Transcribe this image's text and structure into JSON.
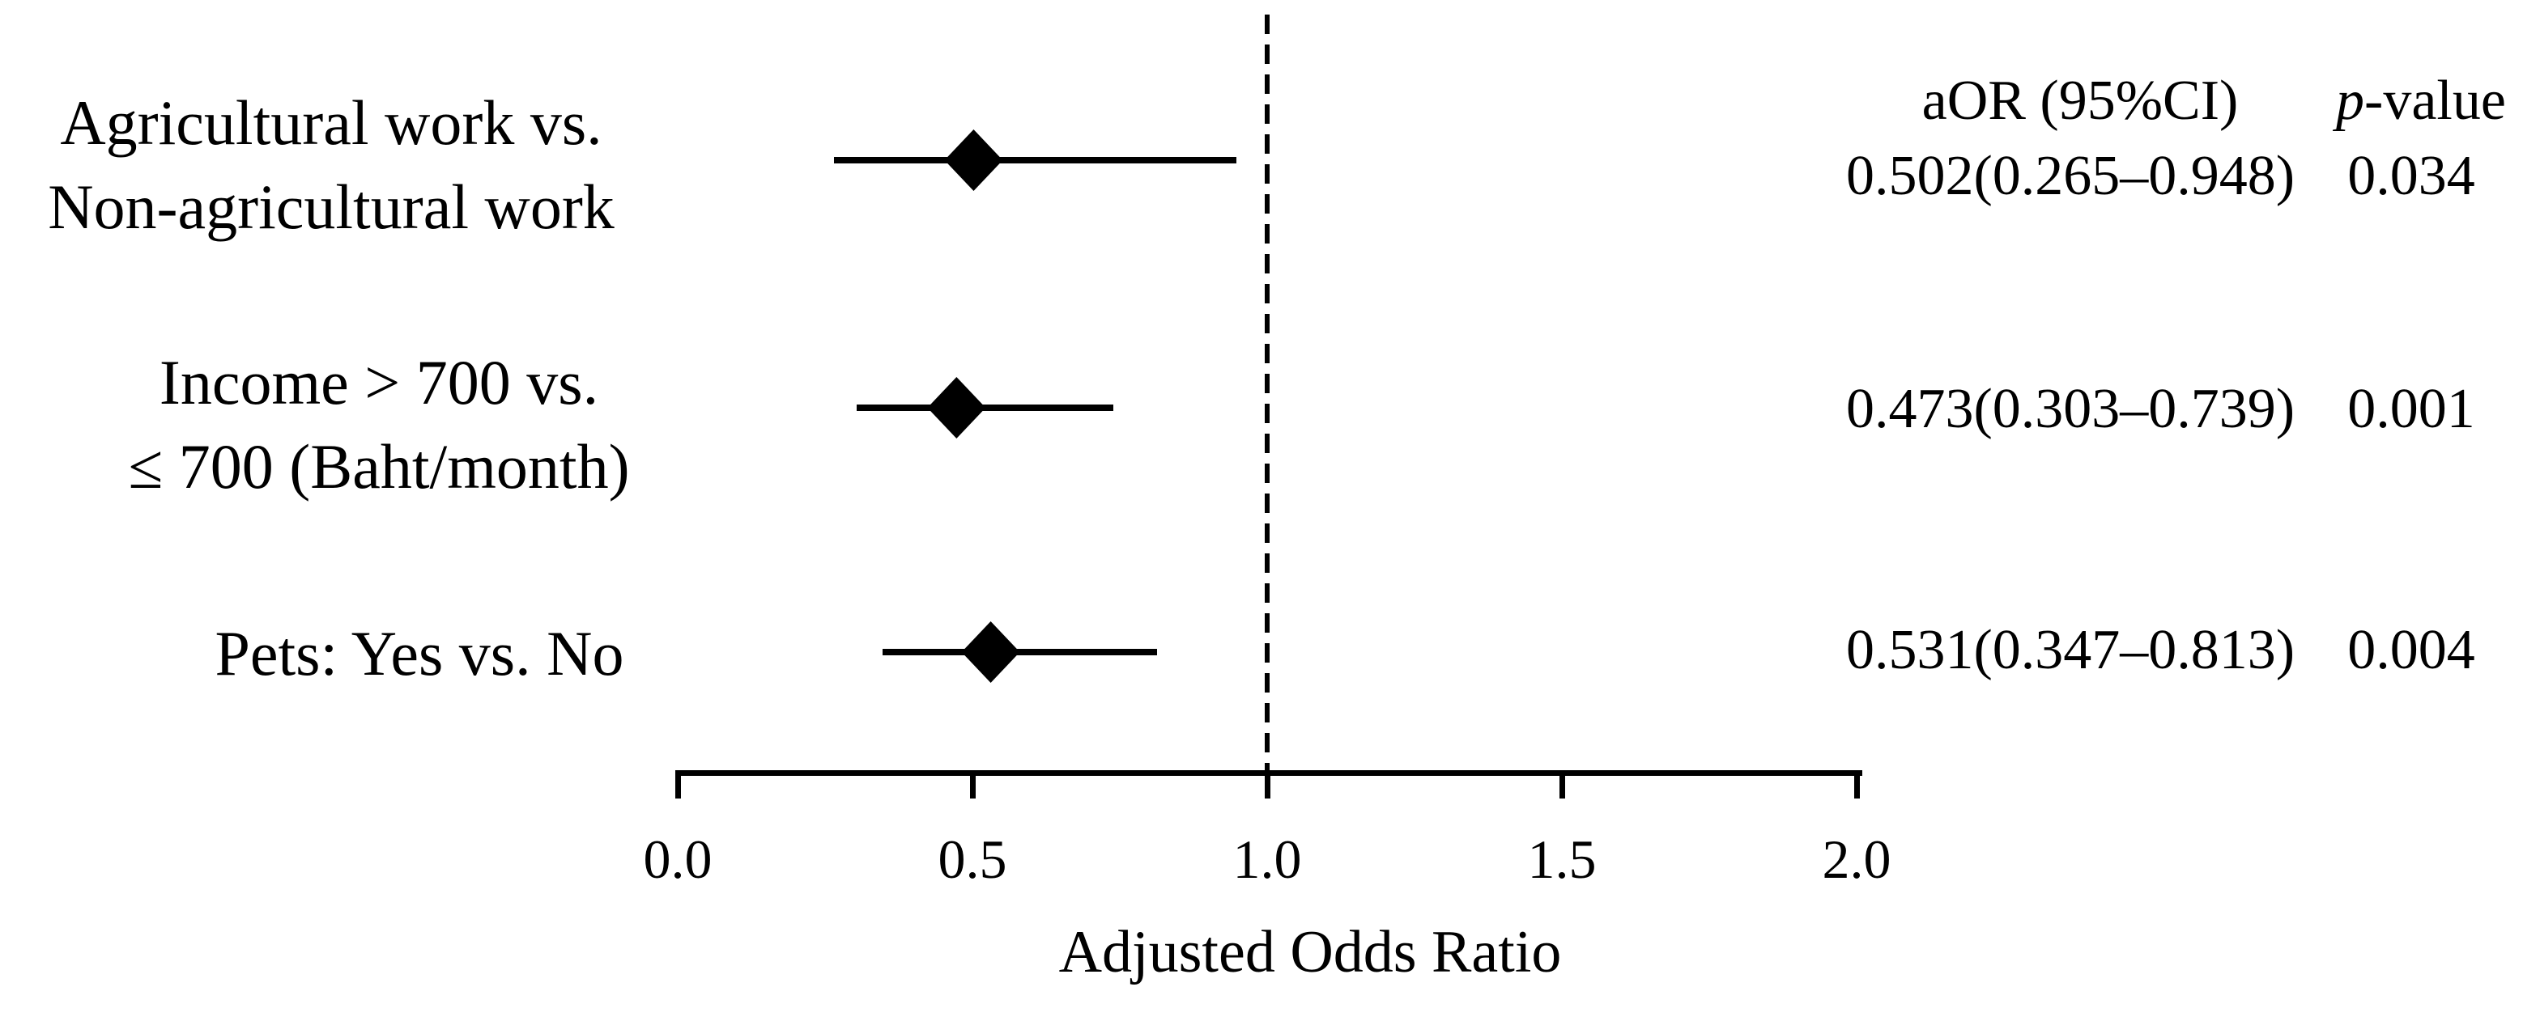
{
  "figure": {
    "background": "#ffffff",
    "foreground": "#000000"
  },
  "table": {
    "estimate_header": "aOR (95%CI)",
    "p_header_italic": "p",
    "p_header_rest": "-value"
  },
  "chart_data": {
    "type": "scatter",
    "subtype": "forest_plot",
    "title": "",
    "xlabel": "Adjusted Odds Ratio",
    "ylabel": "",
    "xlim": [
      0.0,
      2.0
    ],
    "x_ticks": [
      0,
      0.5,
      1,
      1.5,
      2
    ],
    "x_tick_labels": [
      "0.0",
      "0.5",
      "1.0",
      "1.5",
      "2.0"
    ],
    "grid": false,
    "reference_line_x": 1.0,
    "reference_line_style": "dashed",
    "marker": "filled-diamond",
    "rows": [
      {
        "label_lines": [
          "Agricultural work vs.",
          "Non-agricultural work"
        ],
        "aor": 0.502,
        "ci_low": 0.265,
        "ci_high": 0.948,
        "p": 0.034,
        "estimate_text": "0.502(0.265–0.948)",
        "p_text": "0.034"
      },
      {
        "label_lines": [
          "Income > 700 vs.",
          "≤ 700 (Baht/month)"
        ],
        "aor": 0.473,
        "ci_low": 0.303,
        "ci_high": 0.739,
        "p": 0.001,
        "estimate_text": "0.473(0.303–0.739)",
        "p_text": "0.001"
      },
      {
        "label_lines": [
          "Pets: Yes vs. No"
        ],
        "aor": 0.531,
        "ci_low": 0.347,
        "ci_high": 0.813,
        "p": 0.004,
        "estimate_text": "0.531(0.347–0.813)",
        "p_text": "0.004"
      }
    ]
  }
}
